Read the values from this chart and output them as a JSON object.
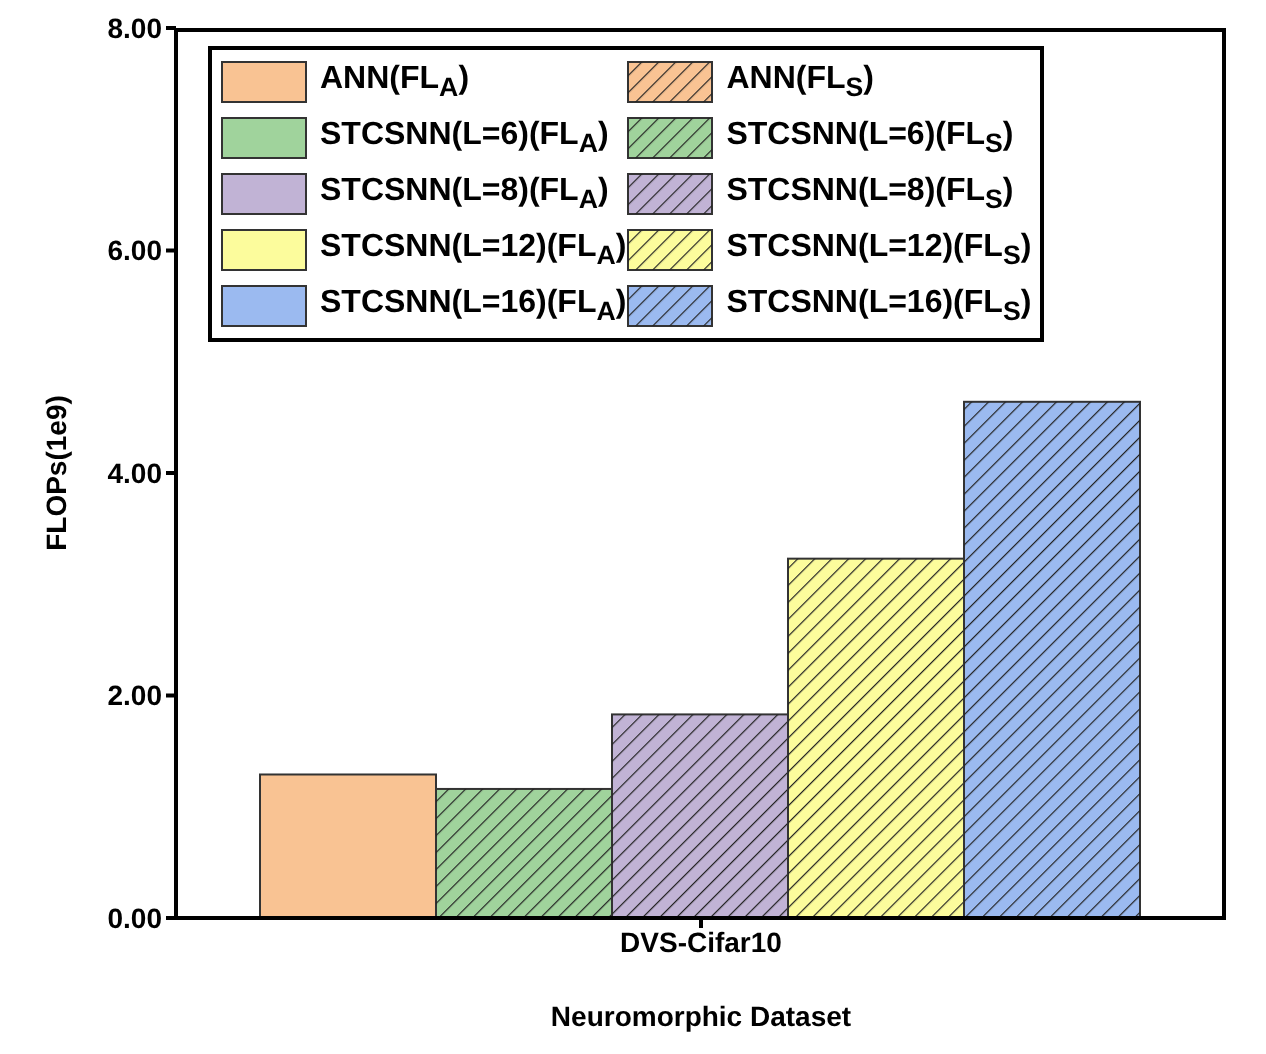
{
  "chart_data": {
    "type": "bar",
    "xlabel": "Neuromorphic Dataset",
    "ylabel": "FLOPs(1e9)",
    "categories": [
      "DVS-Cifar10"
    ],
    "series": [
      {
        "name": "ANN(FL$_{A}$)",
        "color": "#f9c393",
        "values": [
          1.29
        ]
      },
      {
        "name": "ANN(FL$_{S}$)",
        "color": "#f9c393",
        "values": [
          null
        ]
      },
      {
        "name": "STCSNN(L=6)(FL$_{A}$)",
        "color": "#a0d39c",
        "values": [
          null
        ]
      },
      {
        "name": "STCSNN(L=6)(FL$_{S}$)",
        "color": "#a0d39c",
        "values": [
          1.16
        ]
      },
      {
        "name": "STCSNN(L=8)(FL$_{A}$)",
        "color": "#c1b3d5",
        "values": [
          null
        ]
      },
      {
        "name": "STCSNN(L=8)(FL$_{S}$)",
        "color": "#c1b3d5",
        "values": [
          1.83
        ]
      },
      {
        "name": "STCSNN(L=12)(FL$_{A}$)",
        "color": "#fcfc9c",
        "values": [
          null
        ]
      },
      {
        "name": "STCSNN(L=12)(FL$_{S}$)",
        "color": "#fcfc9c",
        "values": [
          3.23
        ]
      },
      {
        "name": "STCSNN(L=16)(FL$_{A}$)",
        "color": "#9bbaf0",
        "values": [
          null
        ]
      },
      {
        "name": "STCSNN(L=16)(FL$_{S}$)",
        "color": "#9bbaf0",
        "values": [
          4.64
        ]
      }
    ],
    "ylim": [
      0,
      8
    ],
    "yticks": [
      {
        "value": 0,
        "label": "0.00"
      },
      {
        "value": 2,
        "label": "2.00"
      },
      {
        "value": 4,
        "label": "4.00"
      },
      {
        "value": 6,
        "label": "6.00"
      },
      {
        "value": 8,
        "label": "8.00"
      }
    ],
    "grid": false,
    "legend": "top left"
  }
}
